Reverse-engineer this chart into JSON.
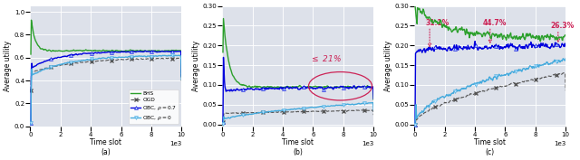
{
  "fig_width": 6.4,
  "fig_height": 1.77,
  "dpi": 100,
  "bg_color": "#dde1ea",
  "x_max": 10000,
  "xlabel": "Time slot",
  "ylabel": "Average utility",
  "colors": {
    "BHS": "#2ca02c",
    "OGD": "#555555",
    "OBC_07": "#0000dd",
    "OBC_0": "#44aadd"
  },
  "legend_labels": [
    "BHS",
    "OGD",
    "OBC, $\\rho = 0.7$",
    "OBC, $\\rho = 0$"
  ],
  "annotation_b": "$\\leq$ 21%",
  "annotation_c": [
    "31.1%",
    "44.7%",
    "26.3%"
  ]
}
